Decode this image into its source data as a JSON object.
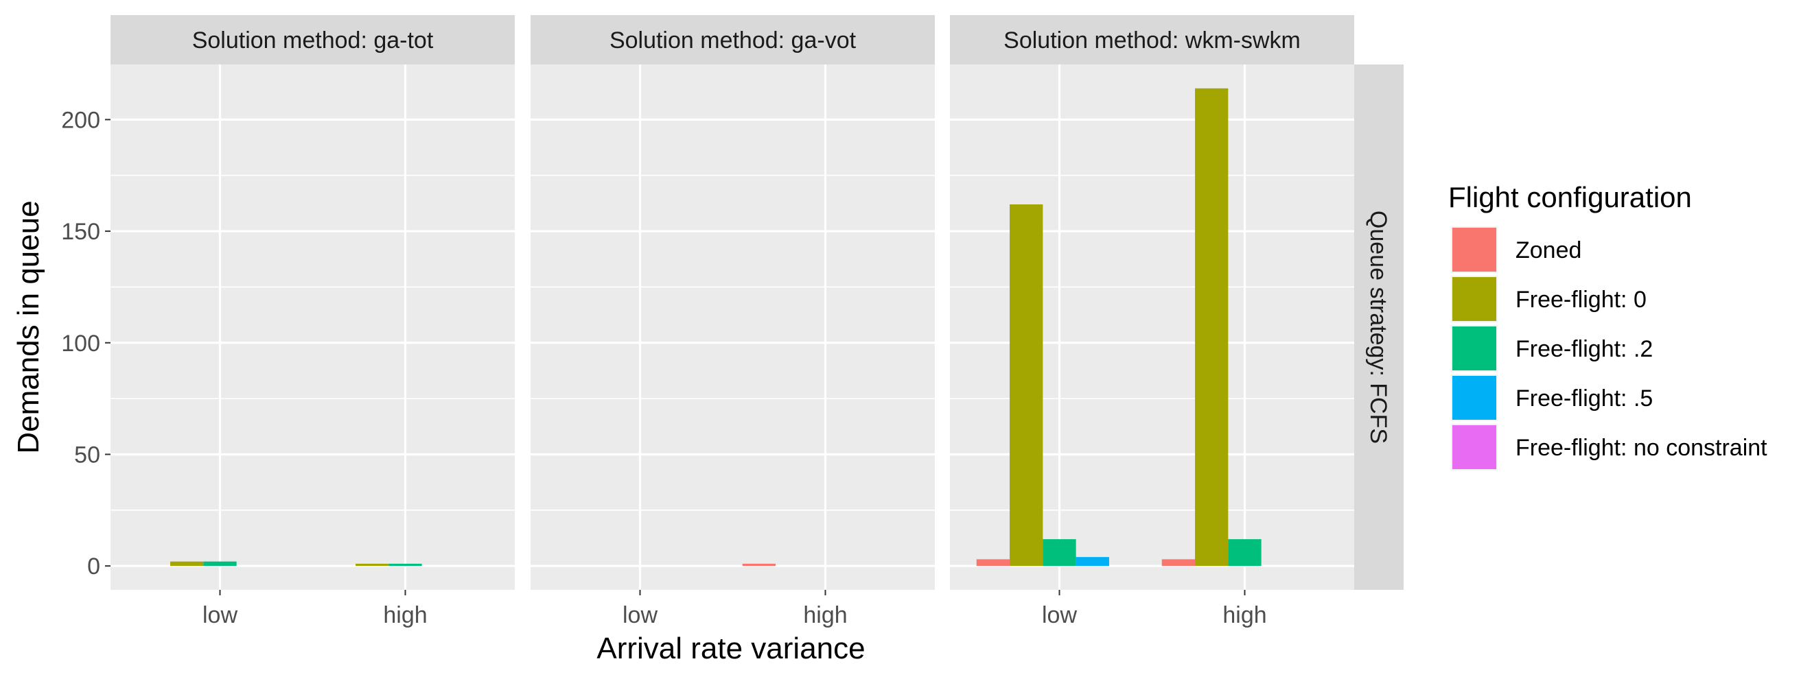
{
  "chart_data": {
    "type": "bar",
    "facet_label_prefix": "Solution method: ",
    "panels": [
      {
        "facet": "ga-tot",
        "categories": [
          "low",
          "high"
        ],
        "series": [
          {
            "name": "Zoned",
            "values": [
              0,
              0
            ]
          },
          {
            "name": "Free-flight: 0",
            "values": [
              2,
              1
            ]
          },
          {
            "name": "Free-flight: .2",
            "values": [
              2,
              1
            ]
          },
          {
            "name": "Free-flight: .5",
            "values": [
              0,
              0
            ]
          },
          {
            "name": "Free-flight: no constraint",
            "values": [
              0,
              0
            ]
          }
        ]
      },
      {
        "facet": "ga-vot",
        "categories": [
          "low",
          "high"
        ],
        "series": [
          {
            "name": "Zoned",
            "values": [
              0,
              1
            ]
          },
          {
            "name": "Free-flight: 0",
            "values": [
              0,
              0
            ]
          },
          {
            "name": "Free-flight: .2",
            "values": [
              0,
              0
            ]
          },
          {
            "name": "Free-flight: .5",
            "values": [
              0,
              0
            ]
          },
          {
            "name": "Free-flight: no constraint",
            "values": [
              0,
              0
            ]
          }
        ]
      },
      {
        "facet": "wkm-swkm",
        "categories": [
          "low",
          "high"
        ],
        "series": [
          {
            "name": "Zoned",
            "values": [
              3,
              3
            ]
          },
          {
            "name": "Free-flight: 0",
            "values": [
              162,
              214
            ]
          },
          {
            "name": "Free-flight: .2",
            "values": [
              12,
              12
            ]
          },
          {
            "name": "Free-flight: .5",
            "values": [
              4,
              0
            ]
          },
          {
            "name": "Free-flight: no constraint",
            "values": [
              0,
              0
            ]
          }
        ]
      }
    ],
    "row_strip": "Queue strategy: FCFS",
    "xlabel": "Arrival rate variance",
    "ylabel": "Demands in queue",
    "ylim": [
      -10.7,
      224.7
    ],
    "yticks": [
      0,
      50,
      100,
      150,
      200
    ],
    "grid": true,
    "legend": {
      "title": "Flight configuration",
      "placement": "right",
      "entries": [
        "Zoned",
        "Free-flight: 0",
        "Free-flight: .2",
        "Free-flight: .5",
        "Free-flight: no constraint"
      ]
    },
    "colors": [
      "#F8766D",
      "#A3A500",
      "#00BF7D",
      "#00B0F6",
      "#E76BF3"
    ],
    "panel_background": "#EBEBEB",
    "strip_background": "#D9D9D9"
  }
}
